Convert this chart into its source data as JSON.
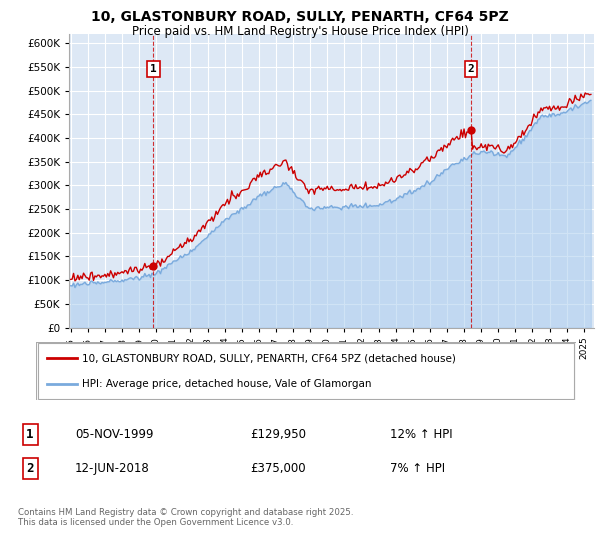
{
  "title": "10, GLASTONBURY ROAD, SULLY, PENARTH, CF64 5PZ",
  "subtitle": "Price paid vs. HM Land Registry's House Price Index (HPI)",
  "legend_line1": "10, GLASTONBURY ROAD, SULLY, PENARTH, CF64 5PZ (detached house)",
  "legend_line2": "HPI: Average price, detached house, Vale of Glamorgan",
  "annotation1_label": "1",
  "annotation1_date": "05-NOV-1999",
  "annotation1_price": "£129,950",
  "annotation1_hpi": "12% ↑ HPI",
  "annotation2_label": "2",
  "annotation2_date": "12-JUN-2018",
  "annotation2_price": "£375,000",
  "annotation2_hpi": "7% ↑ HPI",
  "footer": "Contains HM Land Registry data © Crown copyright and database right 2025.\nThis data is licensed under the Open Government Licence v3.0.",
  "red_color": "#cc0000",
  "blue_color": "#7aaadd",
  "blue_fill": "#aaccee",
  "background_color": "#dde8f5",
  "grid_color": "#ffffff",
  "ylim": [
    0,
    620000
  ],
  "ytick_step": 50000,
  "x_start_year": 1995,
  "x_end_year": 2025
}
